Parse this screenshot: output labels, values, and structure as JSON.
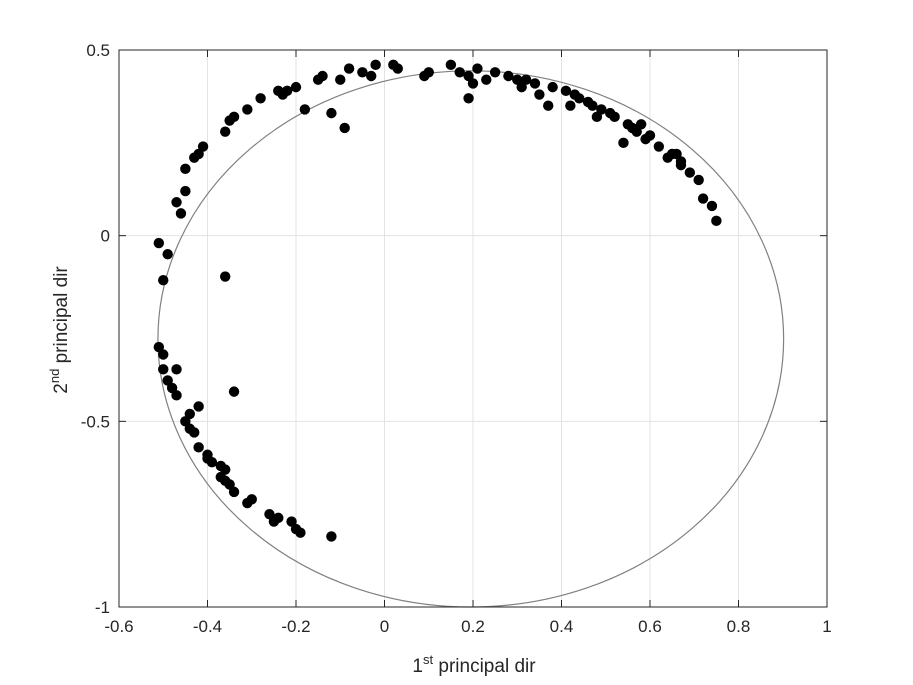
{
  "chart_data": {
    "type": "scatter",
    "title": "",
    "xlabel": {
      "base": "1",
      "sup": "st",
      "rest": " principal dir"
    },
    "ylabel": {
      "base": "2",
      "sup": "nd",
      "rest": " principal dir"
    },
    "xlim": [
      -0.6,
      1
    ],
    "ylim": [
      -1,
      0.5
    ],
    "xticks": [
      -0.6,
      -0.4,
      -0.2,
      0,
      0.2,
      0.4,
      0.6,
      0.8,
      1
    ],
    "yticks": [
      -1,
      -0.5,
      0,
      0.5
    ],
    "xtick_labels": [
      "-0.6",
      "-0.4",
      "-0.2",
      "0",
      "0.2",
      "0.4",
      "0.6",
      "0.8",
      "1"
    ],
    "ytick_labels": [
      "-1",
      "-0.5",
      "0",
      "0.5"
    ],
    "grid": true,
    "legend": "none",
    "colors": {
      "points": "#000000",
      "ellipse": "#808080",
      "grid": "#e3e3e3",
      "axes": "#262626"
    },
    "ellipse": {
      "center": [
        0.195,
        -0.278
      ],
      "semi_axes": [
        0.707,
        0.722
      ]
    },
    "points": [
      [
        -0.51,
        -0.02
      ],
      [
        -0.5,
        -0.12
      ],
      [
        -0.49,
        -0.05
      ],
      [
        -0.46,
        0.06
      ],
      [
        -0.47,
        0.09
      ],
      [
        -0.45,
        0.12
      ],
      [
        -0.45,
        0.18
      ],
      [
        -0.43,
        0.21
      ],
      [
        -0.42,
        0.22
      ],
      [
        -0.41,
        0.24
      ],
      [
        -0.36,
        0.28
      ],
      [
        -0.35,
        0.31
      ],
      [
        -0.34,
        0.32
      ],
      [
        -0.31,
        0.34
      ],
      [
        -0.28,
        0.37
      ],
      [
        -0.24,
        0.39
      ],
      [
        -0.23,
        0.38
      ],
      [
        -0.22,
        0.39
      ],
      [
        -0.2,
        0.4
      ],
      [
        -0.18,
        0.34
      ],
      [
        -0.15,
        0.42
      ],
      [
        -0.14,
        0.43
      ],
      [
        -0.12,
        0.33
      ],
      [
        -0.1,
        0.42
      ],
      [
        -0.09,
        0.29
      ],
      [
        -0.08,
        0.45
      ],
      [
        -0.05,
        0.44
      ],
      [
        -0.03,
        0.43
      ],
      [
        -0.02,
        0.46
      ],
      [
        0.02,
        0.46
      ],
      [
        0.03,
        0.45
      ],
      [
        0.09,
        0.43
      ],
      [
        0.1,
        0.44
      ],
      [
        0.15,
        0.46
      ],
      [
        0.17,
        0.44
      ],
      [
        0.19,
        0.43
      ],
      [
        0.19,
        0.37
      ],
      [
        0.2,
        0.41
      ],
      [
        0.21,
        0.45
      ],
      [
        0.23,
        0.42
      ],
      [
        0.25,
        0.44
      ],
      [
        0.28,
        0.43
      ],
      [
        0.3,
        0.42
      ],
      [
        0.31,
        0.4
      ],
      [
        0.32,
        0.42
      ],
      [
        0.34,
        0.41
      ],
      [
        0.35,
        0.38
      ],
      [
        0.37,
        0.35
      ],
      [
        0.38,
        0.4
      ],
      [
        0.41,
        0.39
      ],
      [
        0.42,
        0.35
      ],
      [
        0.43,
        0.38
      ],
      [
        0.44,
        0.37
      ],
      [
        0.46,
        0.36
      ],
      [
        0.47,
        0.35
      ],
      [
        0.48,
        0.32
      ],
      [
        0.49,
        0.34
      ],
      [
        0.51,
        0.33
      ],
      [
        0.52,
        0.32
      ],
      [
        0.54,
        0.25
      ],
      [
        0.55,
        0.3
      ],
      [
        0.56,
        0.29
      ],
      [
        0.57,
        0.28
      ],
      [
        0.58,
        0.3
      ],
      [
        0.59,
        0.26
      ],
      [
        0.6,
        0.27
      ],
      [
        0.62,
        0.24
      ],
      [
        0.64,
        0.21
      ],
      [
        0.65,
        0.22
      ],
      [
        0.66,
        0.22
      ],
      [
        0.67,
        0.19
      ],
      [
        0.67,
        0.2
      ],
      [
        0.69,
        0.17
      ],
      [
        0.71,
        0.15
      ],
      [
        0.72,
        0.1
      ],
      [
        0.74,
        0.08
      ],
      [
        0.75,
        0.04
      ],
      [
        -0.51,
        -0.3
      ],
      [
        -0.5,
        -0.32
      ],
      [
        -0.5,
        -0.36
      ],
      [
        -0.49,
        -0.39
      ],
      [
        -0.48,
        -0.41
      ],
      [
        -0.47,
        -0.36
      ],
      [
        -0.47,
        -0.43
      ],
      [
        -0.45,
        -0.5
      ],
      [
        -0.44,
        -0.48
      ],
      [
        -0.44,
        -0.52
      ],
      [
        -0.43,
        -0.53
      ],
      [
        -0.42,
        -0.46
      ],
      [
        -0.42,
        -0.57
      ],
      [
        -0.4,
        -0.59
      ],
      [
        -0.4,
        -0.6
      ],
      [
        -0.39,
        -0.61
      ],
      [
        -0.37,
        -0.62
      ],
      [
        -0.37,
        -0.65
      ],
      [
        -0.36,
        -0.63
      ],
      [
        -0.36,
        -0.66
      ],
      [
        -0.35,
        -0.67
      ],
      [
        -0.34,
        -0.69
      ],
      [
        -0.31,
        -0.72
      ],
      [
        -0.3,
        -0.71
      ],
      [
        -0.26,
        -0.75
      ],
      [
        -0.25,
        -0.77
      ],
      [
        -0.24,
        -0.76
      ],
      [
        -0.21,
        -0.77
      ],
      [
        -0.2,
        -0.79
      ],
      [
        -0.19,
        -0.8
      ],
      [
        -0.12,
        -0.81
      ],
      [
        -0.36,
        -0.11
      ],
      [
        -0.34,
        -0.42
      ]
    ]
  }
}
